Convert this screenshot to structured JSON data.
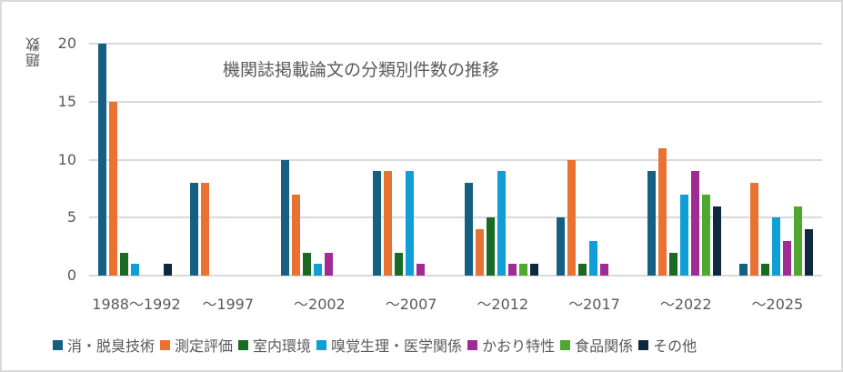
{
  "chart_data": {
    "type": "bar",
    "title": "機関誌掲載論文の分類別件数の推移",
    "xlabel": "",
    "ylabel": "題数",
    "ylim": [
      0,
      20
    ],
    "yticks": [
      0,
      5,
      10,
      15,
      20
    ],
    "grid": true,
    "legend_position": "bottom",
    "categories": [
      "1988～1992",
      "～1997",
      "～2002",
      "～2007",
      "～2012",
      "～2017",
      "～2022",
      "～2025"
    ],
    "series": [
      {
        "name": "消・脱臭技術",
        "color": "#156082",
        "values": [
          20,
          8,
          10,
          9,
          8,
          5,
          9,
          1
        ]
      },
      {
        "name": "測定評価",
        "color": "#e97132",
        "values": [
          15,
          8,
          7,
          9,
          4,
          10,
          11,
          8
        ]
      },
      {
        "name": "室内環境",
        "color": "#196b24",
        "values": [
          2,
          0,
          2,
          2,
          5,
          1,
          2,
          1
        ]
      },
      {
        "name": "嗅覚生理・医学関係",
        "color": "#0f9ed5",
        "values": [
          1,
          0,
          1,
          9,
          9,
          3,
          7,
          5
        ]
      },
      {
        "name": "かおり特性",
        "color": "#a02b93",
        "values": [
          0,
          0,
          2,
          1,
          1,
          1,
          9,
          3
        ]
      },
      {
        "name": "食品関係",
        "color": "#4ea72e",
        "values": [
          0,
          0,
          0,
          0,
          1,
          0,
          7,
          6
        ]
      },
      {
        "name": "その他",
        "color": "#0e2841",
        "values": [
          1,
          0,
          0,
          0,
          1,
          0,
          6,
          4
        ]
      }
    ]
  }
}
